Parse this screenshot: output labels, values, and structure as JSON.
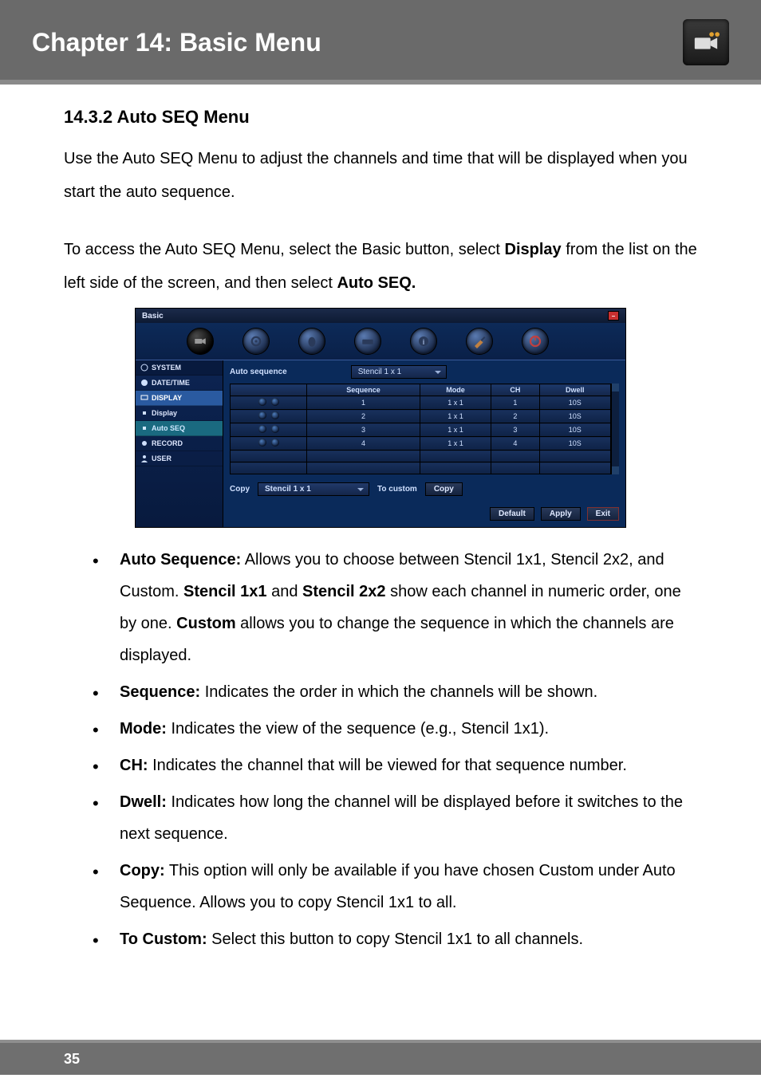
{
  "chapter": {
    "title": "Chapter 14: Basic Menu",
    "badge": "camera-icon"
  },
  "section": {
    "heading": "14.3.2 Auto SEQ Menu"
  },
  "paragraphs": {
    "p1": "Use the Auto SEQ Menu to adjust the channels and time that will be displayed when you start the auto sequence.",
    "p2a": "To access the Auto SEQ Menu, select the Basic button, select ",
    "p2b": "Display",
    "p2c": " from the list on the left side of the screen, and then select ",
    "p2d": "Auto SEQ."
  },
  "screenshot": {
    "window_title": "Basic",
    "top_icons": [
      "camera",
      "dial",
      "mouse",
      "keyboard",
      "info",
      "brush",
      "power"
    ],
    "sidebar": {
      "items": [
        {
          "label": "SYSTEM",
          "icon": "gear",
          "kind": "section"
        },
        {
          "label": "DATE/TIME",
          "icon": "clock",
          "kind": "item"
        },
        {
          "label": "DISPLAY",
          "icon": "monitor",
          "kind": "selected-blue"
        },
        {
          "label": "Display",
          "icon": "dot",
          "kind": "item"
        },
        {
          "label": "Auto SEQ",
          "icon": "dot",
          "kind": "selected-teal"
        },
        {
          "label": "RECORD",
          "icon": "disc",
          "kind": "item"
        },
        {
          "label": "USER",
          "icon": "user",
          "kind": "item"
        }
      ]
    },
    "auto_sequence_label": "Auto sequence",
    "auto_sequence_value": "Stencil 1 x 1",
    "table": {
      "columns": [
        "",
        "Sequence",
        "Mode",
        "CH",
        "Dwell"
      ],
      "rows": [
        {
          "sequence": "1",
          "mode": "1 x 1",
          "ch": "1",
          "dwell": "10S"
        },
        {
          "sequence": "2",
          "mode": "1 x 1",
          "ch": "2",
          "dwell": "10S"
        },
        {
          "sequence": "3",
          "mode": "1 x 1",
          "ch": "3",
          "dwell": "10S"
        },
        {
          "sequence": "4",
          "mode": "1 x 1",
          "ch": "4",
          "dwell": "10S"
        }
      ]
    },
    "copy_label": "Copy",
    "copy_select_value": "Stencil 1 x 1",
    "to_custom_label": "To custom",
    "copy_button": "Copy",
    "buttons": {
      "default": "Default",
      "apply": "Apply",
      "exit": "Exit"
    },
    "colors": {
      "window_bg": "#0a2a5a",
      "header_grad_top": "#1b2a4a",
      "header_grad_bot": "#0d1a33",
      "cell_grad_top": "#18305c",
      "cell_grad_bot": "#0e2246",
      "selected_blue": "#2a5aa0",
      "selected_teal": "#1a6a80",
      "close_red": "#c83030"
    }
  },
  "bullets": [
    {
      "term": "Auto Sequence:",
      "text": " Allows you to choose between Stencil 1x1, Stencil 2x2, and Custom. ",
      "extra_bold1": "Stencil 1x1",
      "mid1": " and ",
      "extra_bold2": "Stencil 2x2",
      "mid2": " show each channel in numeric order, one by one. ",
      "extra_bold3": "Custom",
      "tail": " allows you to change the sequence in which the channels are displayed."
    },
    {
      "term": "Sequence:",
      "text": " Indicates the order in which the channels will be shown."
    },
    {
      "term": "Mode:",
      "text": " Indicates the view of the sequence (e.g., Stencil 1x1)."
    },
    {
      "term": "CH:",
      "text": " Indicates the channel that will be viewed for that sequence number."
    },
    {
      "term": "Dwell:",
      "text": " Indicates how long the channel will be displayed before it switches to the next sequence."
    },
    {
      "term": "Copy:",
      "text": " This option will only be available if you have chosen Custom under Auto Sequence. Allows you to copy Stencil 1x1 to all."
    },
    {
      "term": "To Custom:",
      "text": " Select this button to copy Stencil 1x1 to all channels."
    }
  ],
  "page_number": "35"
}
